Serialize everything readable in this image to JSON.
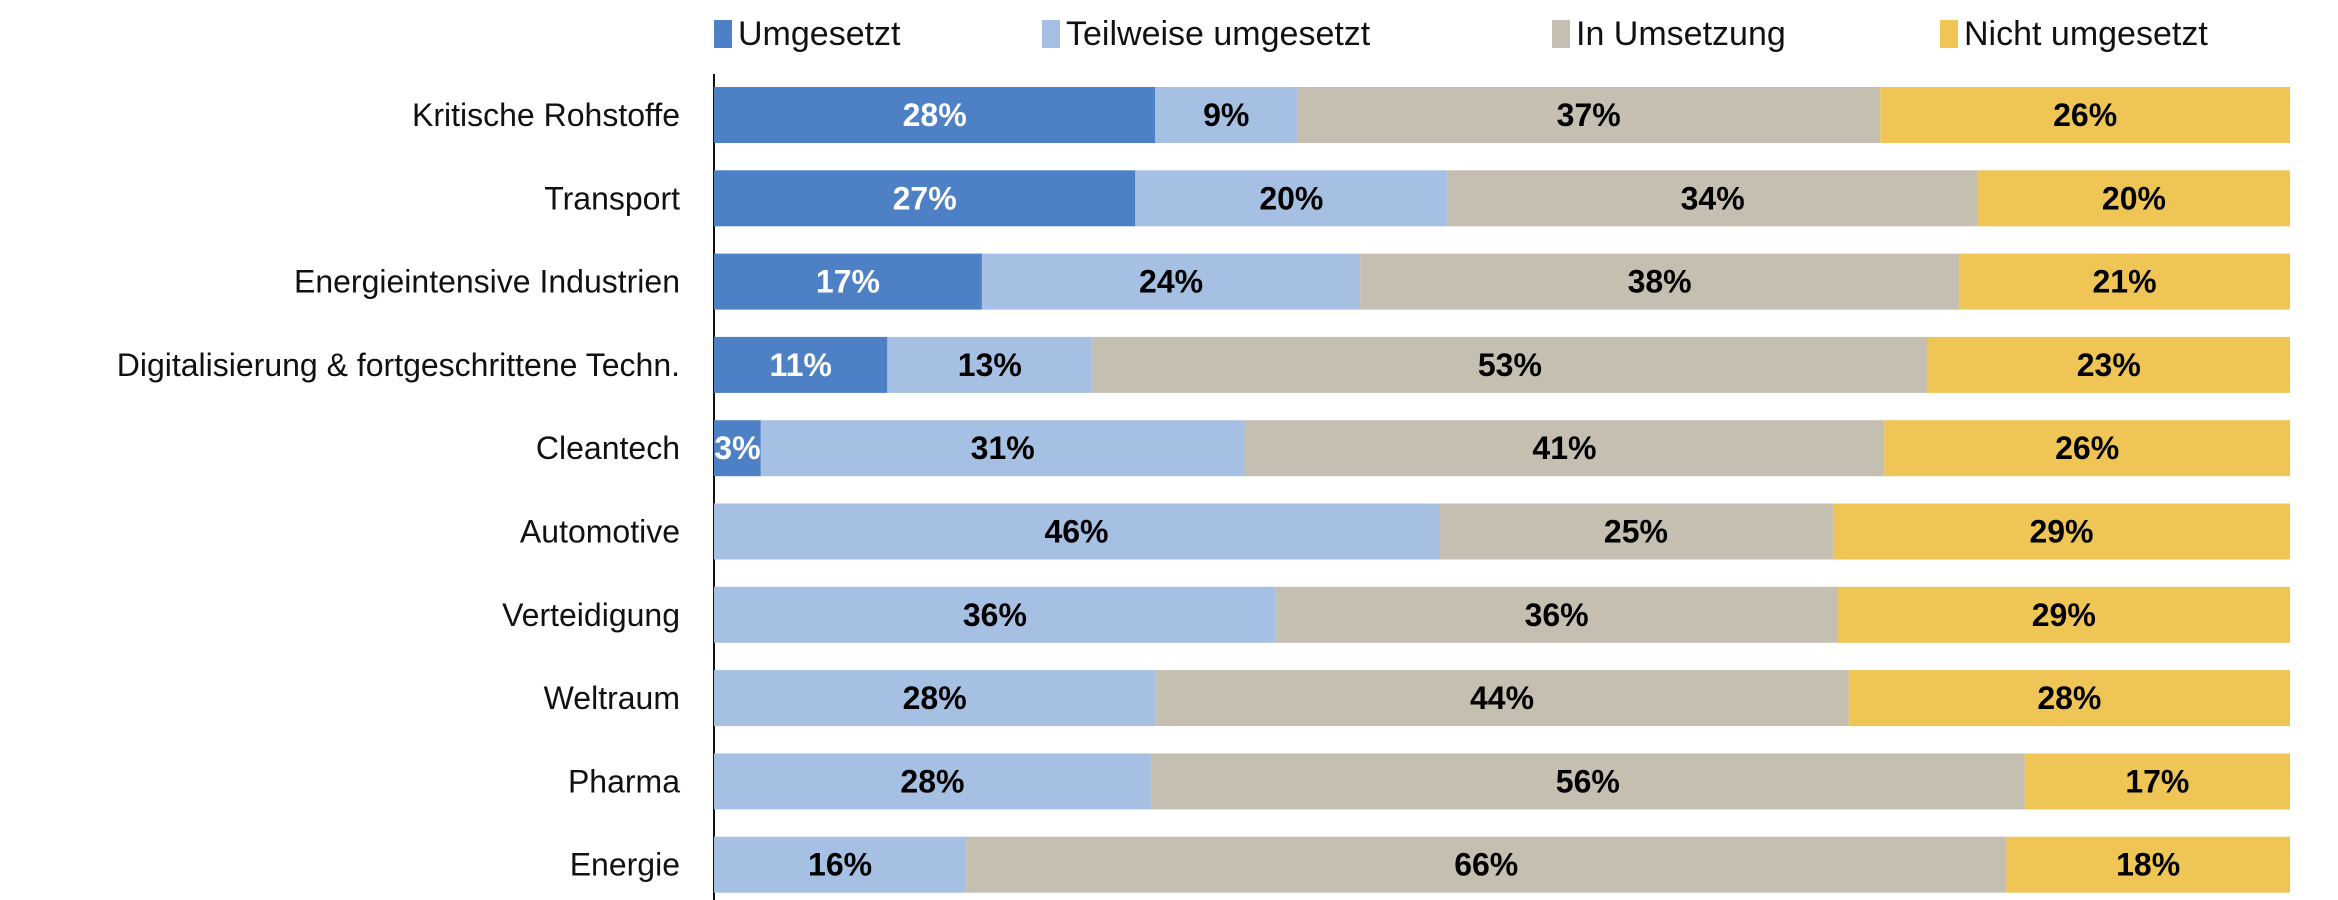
{
  "chart_data": {
    "type": "bar",
    "orientation": "horizontal",
    "stacked": true,
    "title": "",
    "xlabel": "",
    "ylabel": "",
    "xlim": [
      0,
      100
    ],
    "grid": false,
    "legend_position": "top",
    "categories": [
      "Kritische Rohstoffe",
      "Transport",
      "Energieintensive Industrien",
      "Digitalisierung & fortgeschrittene Techn.",
      "Cleantech",
      "Automotive",
      "Verteidigung",
      "Weltraum",
      "Pharma",
      "Energie"
    ],
    "series": [
      {
        "name": "Umgesetzt",
        "color": "#4d80c4",
        "label_color": "#ffffff",
        "values": [
          28,
          27,
          17,
          11,
          3,
          0,
          0,
          0,
          0,
          0
        ]
      },
      {
        "name": "Teilweise umgesetzt",
        "color": "#a6c0e3",
        "label_color": "#000000",
        "values": [
          9,
          20,
          24,
          13,
          31,
          46,
          36,
          28,
          28,
          16
        ]
      },
      {
        "name": "In Umsetzung",
        "color": "#c4bfb0",
        "label_color": "#000000",
        "values": [
          37,
          34,
          38,
          53,
          41,
          25,
          36,
          44,
          56,
          66
        ]
      },
      {
        "name": "Nicht umgesetzt",
        "color": "#efc655",
        "label_color": "#000000",
        "values": [
          26,
          20,
          21,
          23,
          26,
          29,
          29,
          28,
          17,
          18
        ]
      }
    ],
    "value_format": "{v}%"
  }
}
